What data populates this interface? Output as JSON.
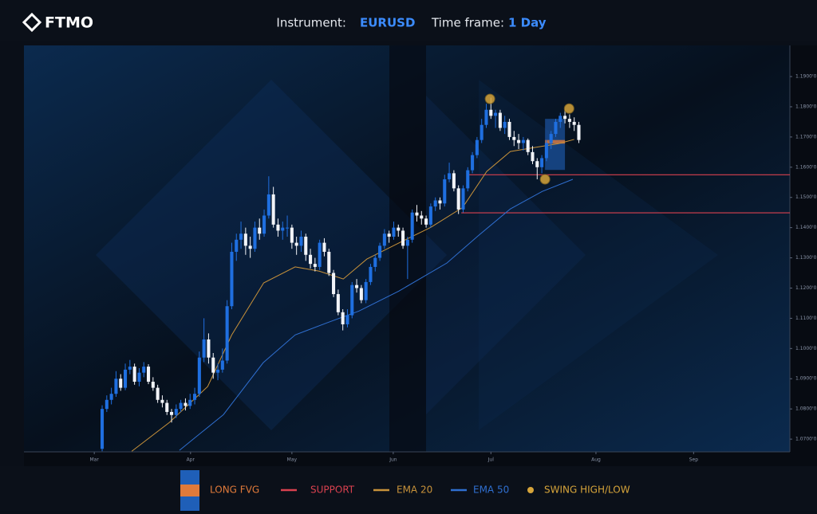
{
  "header": {
    "logo": "FTMO",
    "instrument_label": "Instrument:",
    "instrument": "EURUSD",
    "timeframe_label": "Time frame:",
    "timeframe": "1 Day"
  },
  "chart_data": {
    "type": "candlestick",
    "up_color": "#1f6fe0",
    "down_color": "#f2f4f8",
    "ylim": [
      1.0658,
      1.2003
    ],
    "yticks": [
      {
        "value": 1.07,
        "label": "1.0700'0"
      },
      {
        "value": 1.08,
        "label": "1.0800'0"
      },
      {
        "value": 1.09,
        "label": "1.0900'0"
      },
      {
        "value": 1.1,
        "label": "1.1000'0"
      },
      {
        "value": 1.11,
        "label": "1.1100'0"
      },
      {
        "value": 1.12,
        "label": "1.1200'0"
      },
      {
        "value": 1.13,
        "label": "1.1300'0"
      },
      {
        "value": 1.14,
        "label": "1.1400'0"
      },
      {
        "value": 1.15,
        "label": "1.1500'0"
      },
      {
        "value": 1.16,
        "label": "1.1600'0"
      },
      {
        "value": 1.17,
        "label": "1.1700'0"
      },
      {
        "value": 1.18,
        "label": "1.1800'0"
      },
      {
        "value": 1.19,
        "label": "1.1900'0"
      }
    ],
    "xlim": [
      -16.9,
      148.6
    ],
    "xticks": [
      {
        "value": -1.7,
        "label": "Mar"
      },
      {
        "value": 19.1,
        "label": "Apr"
      },
      {
        "value": 41,
        "label": "May"
      },
      {
        "value": 62.9,
        "label": "Jun"
      },
      {
        "value": 84,
        "label": "Jul"
      },
      {
        "value": 106.7,
        "label": "Aug"
      },
      {
        "value": 127.8,
        "label": "Sep"
      }
    ],
    "candles": [
      [
        1.0668,
        1.0812,
        1.066,
        1.08
      ],
      [
        1.08,
        1.0845,
        1.079,
        1.083
      ],
      [
        1.083,
        1.087,
        1.0815,
        1.085
      ],
      [
        1.085,
        1.0925,
        1.084,
        1.09
      ],
      [
        1.09,
        1.0915,
        1.086,
        1.087
      ],
      [
        1.087,
        1.095,
        1.0862,
        1.093
      ],
      [
        1.093,
        1.0962,
        1.0915,
        1.094
      ],
      [
        1.094,
        1.095,
        1.088,
        1.089
      ],
      [
        1.089,
        1.0935,
        1.0875,
        1.092
      ],
      [
        1.092,
        1.0955,
        1.0905,
        1.094
      ],
      [
        1.094,
        1.0948,
        1.0882,
        1.089
      ],
      [
        1.089,
        1.0905,
        1.086,
        1.087
      ],
      [
        1.087,
        1.088,
        1.082,
        1.083
      ],
      [
        1.083,
        1.0845,
        1.0805,
        1.082
      ],
      [
        1.082,
        1.083,
        1.078,
        1.079
      ],
      [
        1.079,
        1.08,
        1.0755,
        1.078
      ],
      [
        1.078,
        1.0815,
        1.077,
        1.08
      ],
      [
        1.08,
        1.083,
        1.079,
        1.082
      ],
      [
        1.082,
        1.0835,
        1.0795,
        1.081
      ],
      [
        1.081,
        1.085,
        1.08,
        1.083
      ],
      [
        1.083,
        1.087,
        1.0815,
        1.085
      ],
      [
        1.085,
        1.099,
        1.084,
        1.097
      ],
      [
        1.097,
        1.11,
        1.0955,
        1.103
      ],
      [
        1.103,
        1.105,
        1.095,
        1.097
      ],
      [
        1.097,
        1.0985,
        1.09,
        1.092
      ],
      [
        1.092,
        1.095,
        1.0895,
        1.093
      ],
      [
        1.093,
        1.1,
        1.092,
        1.096
      ],
      [
        1.096,
        1.116,
        1.095,
        1.114
      ],
      [
        1.114,
        1.135,
        1.113,
        1.132
      ],
      [
        1.132,
        1.138,
        1.129,
        1.136
      ],
      [
        1.136,
        1.142,
        1.133,
        1.138
      ],
      [
        1.138,
        1.14,
        1.131,
        1.134
      ],
      [
        1.134,
        1.137,
        1.13,
        1.133
      ],
      [
        1.133,
        1.142,
        1.132,
        1.14
      ],
      [
        1.14,
        1.143,
        1.136,
        1.138
      ],
      [
        1.138,
        1.146,
        1.137,
        1.144
      ],
      [
        1.144,
        1.157,
        1.143,
        1.151
      ],
      [
        1.151,
        1.1535,
        1.14,
        1.141
      ],
      [
        1.141,
        1.143,
        1.137,
        1.139
      ],
      [
        1.139,
        1.142,
        1.136,
        1.14
      ],
      [
        1.14,
        1.144,
        1.137,
        1.14
      ],
      [
        1.14,
        1.141,
        1.133,
        1.135
      ],
      [
        1.135,
        1.137,
        1.131,
        1.134
      ],
      [
        1.134,
        1.139,
        1.132,
        1.137
      ],
      [
        1.137,
        1.138,
        1.129,
        1.131
      ],
      [
        1.131,
        1.133,
        1.1265,
        1.128
      ],
      [
        1.128,
        1.13,
        1.1255,
        1.127
      ],
      [
        1.127,
        1.136,
        1.126,
        1.135
      ],
      [
        1.135,
        1.1365,
        1.1305,
        1.132
      ],
      [
        1.132,
        1.133,
        1.124,
        1.125
      ],
      [
        1.125,
        1.126,
        1.117,
        1.118
      ],
      [
        1.118,
        1.1195,
        1.111,
        1.112
      ],
      [
        1.112,
        1.113,
        1.106,
        1.108
      ],
      [
        1.108,
        1.113,
        1.107,
        1.111
      ],
      [
        1.111,
        1.122,
        1.11,
        1.121
      ],
      [
        1.121,
        1.123,
        1.1185,
        1.12
      ],
      [
        1.12,
        1.121,
        1.115,
        1.116
      ],
      [
        1.116,
        1.123,
        1.115,
        1.122
      ],
      [
        1.122,
        1.128,
        1.121,
        1.127
      ],
      [
        1.127,
        1.131,
        1.1255,
        1.13
      ],
      [
        1.13,
        1.135,
        1.129,
        1.134
      ],
      [
        1.134,
        1.1395,
        1.133,
        1.138
      ],
      [
        1.138,
        1.139,
        1.135,
        1.137
      ],
      [
        1.137,
        1.142,
        1.136,
        1.14
      ],
      [
        1.14,
        1.141,
        1.137,
        1.139
      ],
      [
        1.139,
        1.14,
        1.133,
        1.134
      ],
      [
        1.134,
        1.137,
        1.123,
        1.136
      ],
      [
        1.136,
        1.146,
        1.135,
        1.145
      ],
      [
        1.145,
        1.1475,
        1.142,
        1.144
      ],
      [
        1.144,
        1.1455,
        1.141,
        1.143
      ],
      [
        1.143,
        1.144,
        1.14,
        1.141
      ],
      [
        1.141,
        1.148,
        1.14,
        1.147
      ],
      [
        1.147,
        1.15,
        1.1455,
        1.149
      ],
      [
        1.149,
        1.15,
        1.146,
        1.148
      ],
      [
        1.148,
        1.1575,
        1.147,
        1.156
      ],
      [
        1.156,
        1.1615,
        1.155,
        1.158
      ],
      [
        1.158,
        1.159,
        1.152,
        1.153
      ],
      [
        1.153,
        1.154,
        1.1445,
        1.146
      ],
      [
        1.146,
        1.154,
        1.145,
        1.153
      ],
      [
        1.153,
        1.16,
        1.152,
        1.159
      ],
      [
        1.159,
        1.165,
        1.158,
        1.164
      ],
      [
        1.164,
        1.17,
        1.163,
        1.169
      ],
      [
        1.169,
        1.176,
        1.168,
        1.174
      ],
      [
        1.174,
        1.181,
        1.173,
        1.179
      ],
      [
        1.179,
        1.183,
        1.176,
        1.177
      ],
      [
        1.177,
        1.179,
        1.173,
        1.178
      ],
      [
        1.178,
        1.179,
        1.172,
        1.173
      ],
      [
        1.173,
        1.177,
        1.171,
        1.175
      ],
      [
        1.175,
        1.176,
        1.169,
        1.17
      ],
      [
        1.17,
        1.172,
        1.167,
        1.169
      ],
      [
        1.169,
        1.171,
        1.166,
        1.168
      ],
      [
        1.168,
        1.17,
        1.1655,
        1.169
      ],
      [
        1.169,
        1.1695,
        1.164,
        1.165
      ],
      [
        1.165,
        1.167,
        1.161,
        1.162
      ],
      [
        1.162,
        1.163,
        1.156,
        1.16
      ],
      [
        1.16,
        1.164,
        1.158,
        1.163
      ],
      [
        1.163,
        1.169,
        1.162,
        1.168
      ],
      [
        1.168,
        1.172,
        1.166,
        1.171
      ],
      [
        1.171,
        1.176,
        1.17,
        1.175
      ],
      [
        1.175,
        1.178,
        1.173,
        1.177
      ],
      [
        1.177,
        1.179,
        1.1745,
        1.176
      ],
      [
        1.176,
        1.1775,
        1.173,
        1.175
      ],
      [
        1.175,
        1.1765,
        1.172,
        1.174
      ],
      [
        1.174,
        1.175,
        1.168,
        1.169
      ]
    ],
    "ema": [
      {
        "name": "EMA 20",
        "color": "#c8923a",
        "x": [
          6.4,
          14.5,
          22.8,
          28,
          34.9,
          41.7,
          46.9,
          52.1,
          57.2,
          64.1,
          71,
          77.9,
          83.1,
          88.2,
          93.4,
          98.6,
          102
        ],
        "values": [
          1.066,
          1.0755,
          1.0874,
          1.1045,
          1.1217,
          1.127,
          1.1256,
          1.123,
          1.1296,
          1.1349,
          1.1401,
          1.1467,
          1.1586,
          1.1652,
          1.1665,
          1.1678,
          1.1692
        ]
      },
      {
        "name": "EMA 50",
        "color": "#2f6fd0",
        "x": [
          16.7,
          26.2,
          34.8,
          41.7,
          48.6,
          55.5,
          64.1,
          74.5,
          81.4,
          88.2,
          95.1,
          101.7
        ],
        "values": [
          1.0663,
          1.0781,
          1.0953,
          1.1045,
          1.1085,
          1.1124,
          1.119,
          1.1283,
          1.1375,
          1.1462,
          1.152,
          1.156
        ]
      }
    ],
    "support": {
      "name": "SUPPORT",
      "color": "#d9414f",
      "levels": [
        {
          "x": 78.8,
          "value": 1.1575
        },
        {
          "x": 77.6,
          "value": 1.1449
        }
      ]
    },
    "swings": {
      "name": "SWING HIGH/LOW",
      "color": "#d6a43a",
      "points": [
        {
          "x": 83.8,
          "value": 1.1826
        },
        {
          "x": 100.9,
          "value": 1.1794
        },
        {
          "x": 95.7,
          "value": 1.156
        }
      ]
    },
    "fvg": {
      "name": "LONG FVG",
      "color": "#1f5fb8",
      "gap_color": "#e07a3a",
      "x": [
        95.7,
        100
      ],
      "top": 1.176,
      "bottom": 1.1591,
      "gap": [
        1.1678,
        1.169
      ]
    }
  }
}
